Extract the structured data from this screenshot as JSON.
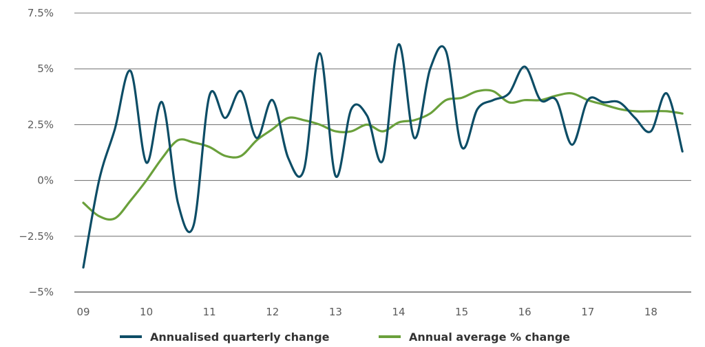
{
  "chart_data": {
    "type": "line",
    "title": "",
    "xlabel": "",
    "ylabel": "",
    "x_ticks": [
      "09",
      "10",
      "11",
      "12",
      "13",
      "14",
      "15",
      "16",
      "17",
      "18"
    ],
    "y_ticks": [
      "7.5%",
      "5%",
      "2.5%",
      "0%",
      "−2.5%",
      "−5%"
    ],
    "y_tick_values": [
      7.5,
      5,
      2.5,
      0,
      -2.5,
      -5
    ],
    "ylim": [
      -5,
      7.5
    ],
    "xlim": [
      9,
      18.55
    ],
    "grid": "horizontal",
    "legend_position": "bottom",
    "series": [
      {
        "name": "Annualised quarterly change",
        "color": "#0d4d66",
        "x": [
          9.0,
          9.25,
          9.5,
          9.75,
          10.0,
          10.25,
          10.5,
          10.75,
          11.0,
          11.25,
          11.5,
          11.75,
          12.0,
          12.25,
          12.5,
          12.75,
          13.0,
          13.25,
          13.5,
          13.75,
          14.0,
          14.25,
          14.5,
          14.75,
          15.0,
          15.25,
          15.5,
          15.75,
          16.0,
          16.25,
          16.5,
          16.75,
          17.0,
          17.25,
          17.5,
          17.75,
          18.0,
          18.25,
          18.5
        ],
        "y": [
          -3.9,
          0.0,
          2.3,
          4.9,
          0.8,
          3.5,
          -1.0,
          -2.0,
          3.8,
          2.8,
          4.0,
          1.9,
          3.6,
          1.0,
          0.5,
          5.7,
          0.2,
          3.2,
          2.9,
          0.9,
          6.1,
          1.9,
          5.0,
          5.8,
          1.5,
          3.2,
          3.6,
          3.9,
          5.1,
          3.6,
          3.6,
          1.6,
          3.6,
          3.5,
          3.5,
          2.8,
          2.2,
          3.9,
          1.3
        ]
      },
      {
        "name": "Annual average % change",
        "color": "#6aa03b",
        "x": [
          9.0,
          9.25,
          9.5,
          9.75,
          10.0,
          10.25,
          10.5,
          10.75,
          11.0,
          11.25,
          11.5,
          11.75,
          12.0,
          12.25,
          12.5,
          12.75,
          13.0,
          13.25,
          13.5,
          13.75,
          14.0,
          14.25,
          14.5,
          14.75,
          15.0,
          15.25,
          15.5,
          15.75,
          16.0,
          16.25,
          16.5,
          16.75,
          17.0,
          17.25,
          17.5,
          17.75,
          18.0,
          18.25,
          18.5
        ],
        "y": [
          -1.0,
          -1.6,
          -1.7,
          -0.9,
          0.0,
          1.0,
          1.8,
          1.7,
          1.5,
          1.1,
          1.1,
          1.8,
          2.3,
          2.8,
          2.7,
          2.5,
          2.2,
          2.2,
          2.5,
          2.2,
          2.6,
          2.7,
          3.0,
          3.6,
          3.7,
          4.0,
          4.0,
          3.5,
          3.6,
          3.6,
          3.8,
          3.9,
          3.6,
          3.4,
          3.2,
          3.1,
          3.1,
          3.1,
          3.0
        ]
      }
    ]
  }
}
